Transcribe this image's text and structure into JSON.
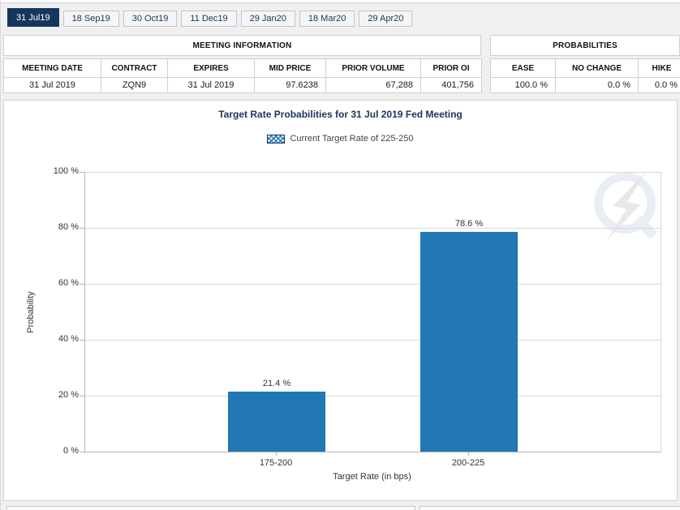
{
  "tabs": [
    {
      "label": "31 Jul19",
      "active": true
    },
    {
      "label": "18 Sep19",
      "active": false
    },
    {
      "label": "30 Oct19",
      "active": false
    },
    {
      "label": "11 Dec19",
      "active": false
    },
    {
      "label": "29 Jan20",
      "active": false
    },
    {
      "label": "18 Mar20",
      "active": false
    },
    {
      "label": "29 Apr20",
      "active": false
    }
  ],
  "meeting_info": {
    "title": "MEETING INFORMATION",
    "columns": [
      "MEETING DATE",
      "CONTRACT",
      "EXPIRES",
      "MID PRICE",
      "PRIOR VOLUME",
      "PRIOR OI"
    ],
    "values": [
      "31 Jul 2019",
      "ZQN9",
      "31 Jul 2019",
      "97.6238",
      "67,288",
      "401,756"
    ]
  },
  "probabilities": {
    "title": "PROBABILITIES",
    "columns": [
      "EASE",
      "NO CHANGE",
      "HIKE"
    ],
    "values": [
      "100.0 %",
      "0.0 %",
      "0.0 %"
    ]
  },
  "chart_data": {
    "type": "bar",
    "title": "Target Rate Probabilities for 31 Jul 2019 Fed Meeting",
    "legend": "Current Target Rate of 225-250",
    "categories": [
      "175-200",
      "200-225"
    ],
    "values": [
      21.4,
      78.6
    ],
    "value_labels": [
      "21.4 %",
      "78.6 %"
    ],
    "xlabel": "Target Rate (in bps)",
    "ylabel": "Probability",
    "ylim": [
      0,
      100
    ],
    "yticks": [
      "100 %",
      "80 %",
      "60 %",
      "40 %",
      "20 %",
      "0 %"
    ],
    "grid": "horizontal",
    "legend_position": "top",
    "bar_color": "#2178b5"
  },
  "colors": {
    "accent_navy": "#17365d",
    "bar_blue": "#2178b5",
    "page_background": "#f0f0f1"
  }
}
